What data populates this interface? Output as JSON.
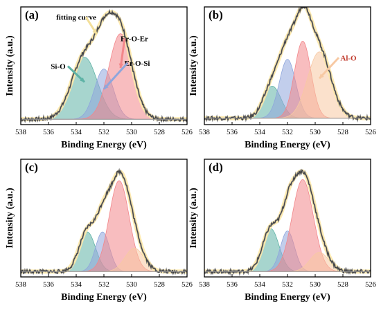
{
  "chart_data": [
    {
      "type": "area",
      "panel_label": "(a)",
      "xlabel": "Binding Energy (eV)",
      "ylabel": "Intensity (a.u.)",
      "xlim": [
        538,
        526
      ],
      "ylim": [
        0,
        1.1
      ],
      "x_ticks": [
        "538",
        "536",
        "534",
        "532",
        "530",
        "528",
        "526"
      ],
      "background": 0.05,
      "raw_color": "#7f7f7f",
      "envelope": {
        "name": "fitting curve",
        "color": "#ffe9a8"
      },
      "components": [
        {
          "name": "Si-O",
          "center": 533.4,
          "fwhm": 2.2,
          "height": 0.58,
          "color": "#5fb3a6"
        },
        {
          "name": "Er-O-Si",
          "center": 532.0,
          "fwhm": 1.6,
          "height": 0.47,
          "color": "#8fa6dc"
        },
        {
          "name": "Er-O-Er",
          "center": 530.8,
          "fwhm": 2.0,
          "height": 0.8,
          "color": "#f2868a"
        }
      ],
      "annotations": [
        {
          "text": "fitting curve",
          "color": "#000000",
          "tx": 534.0,
          "ty": 0.98
        },
        {
          "text": "Si-O",
          "color": "#000000",
          "tx": 535.3,
          "ty": 0.52
        },
        {
          "text": "Er-O-Er",
          "color": "#000000",
          "tx": 529.8,
          "ty": 0.78
        },
        {
          "text": "Er-O-Si",
          "color": "#000000",
          "tx": 529.6,
          "ty": 0.55
        }
      ]
    },
    {
      "type": "area",
      "panel_label": "(b)",
      "xlabel": "Binding Energy (eV)",
      "ylabel": "Intensity (a.u.)",
      "xlim": [
        538,
        526
      ],
      "ylim": [
        0,
        1.1
      ],
      "x_ticks": [
        "538",
        "536",
        "534",
        "532",
        "530",
        "528",
        "526"
      ],
      "background": 0.06,
      "raw_color": "#7f7f7f",
      "envelope": {
        "name": "",
        "color": "#ffe9a8"
      },
      "components": [
        {
          "name": "",
          "center": 533.1,
          "fwhm": 1.5,
          "height": 0.3,
          "color": "#5fb3a6"
        },
        {
          "name": "",
          "center": 532.0,
          "fwhm": 1.4,
          "height": 0.55,
          "color": "#8fa6dc"
        },
        {
          "name": "",
          "center": 530.9,
          "fwhm": 1.4,
          "height": 0.72,
          "color": "#f2868a"
        },
        {
          "name": "Al-O",
          "center": 529.7,
          "fwhm": 2.0,
          "height": 0.62,
          "color": "#f7c9a3"
        }
      ],
      "annotations": [
        {
          "text": "Al-O",
          "color": "#c0392b",
          "tx": 527.6,
          "ty": 0.6
        }
      ]
    },
    {
      "type": "area",
      "panel_label": "(c)",
      "xlabel": "Binding Energy (eV)",
      "ylabel": "Intensity (a.u.)",
      "xlim": [
        538,
        526
      ],
      "ylim": [
        0,
        1.1
      ],
      "x_ticks": [
        "538",
        "536",
        "534",
        "532",
        "530",
        "528",
        "526"
      ],
      "background": 0.05,
      "raw_color": "#7f7f7f",
      "envelope": {
        "name": "",
        "color": "#ffe9a8"
      },
      "components": [
        {
          "name": "",
          "center": 533.2,
          "fwhm": 1.4,
          "height": 0.37,
          "color": "#5fb3a6"
        },
        {
          "name": "",
          "center": 532.1,
          "fwhm": 1.2,
          "height": 0.37,
          "color": "#8fa6dc"
        },
        {
          "name": "",
          "center": 530.9,
          "fwhm": 1.7,
          "height": 0.85,
          "color": "#f2868a"
        },
        {
          "name": "",
          "center": 529.8,
          "fwhm": 1.6,
          "height": 0.22,
          "color": "#f7c9a3"
        }
      ],
      "annotations": []
    },
    {
      "type": "area",
      "panel_label": "(d)",
      "xlabel": "Binding Energy (eV)",
      "ylabel": "Intensity (a.u.)",
      "xlim": [
        538,
        526
      ],
      "ylim": [
        0,
        1.1
      ],
      "x_ticks": [
        "538",
        "536",
        "534",
        "532",
        "530",
        "528",
        "526"
      ],
      "background": 0.05,
      "raw_color": "#7f7f7f",
      "envelope": {
        "name": "",
        "color": "#ffe9a8"
      },
      "components": [
        {
          "name": "",
          "center": 533.2,
          "fwhm": 1.4,
          "height": 0.4,
          "color": "#5fb3a6"
        },
        {
          "name": "",
          "center": 532.0,
          "fwhm": 1.2,
          "height": 0.38,
          "color": "#8fa6dc"
        },
        {
          "name": "",
          "center": 530.9,
          "fwhm": 1.8,
          "height": 0.86,
          "color": "#f2868a"
        },
        {
          "name": "",
          "center": 529.7,
          "fwhm": 1.6,
          "height": 0.18,
          "color": "#f7c9a3"
        }
      ],
      "annotations": []
    }
  ]
}
